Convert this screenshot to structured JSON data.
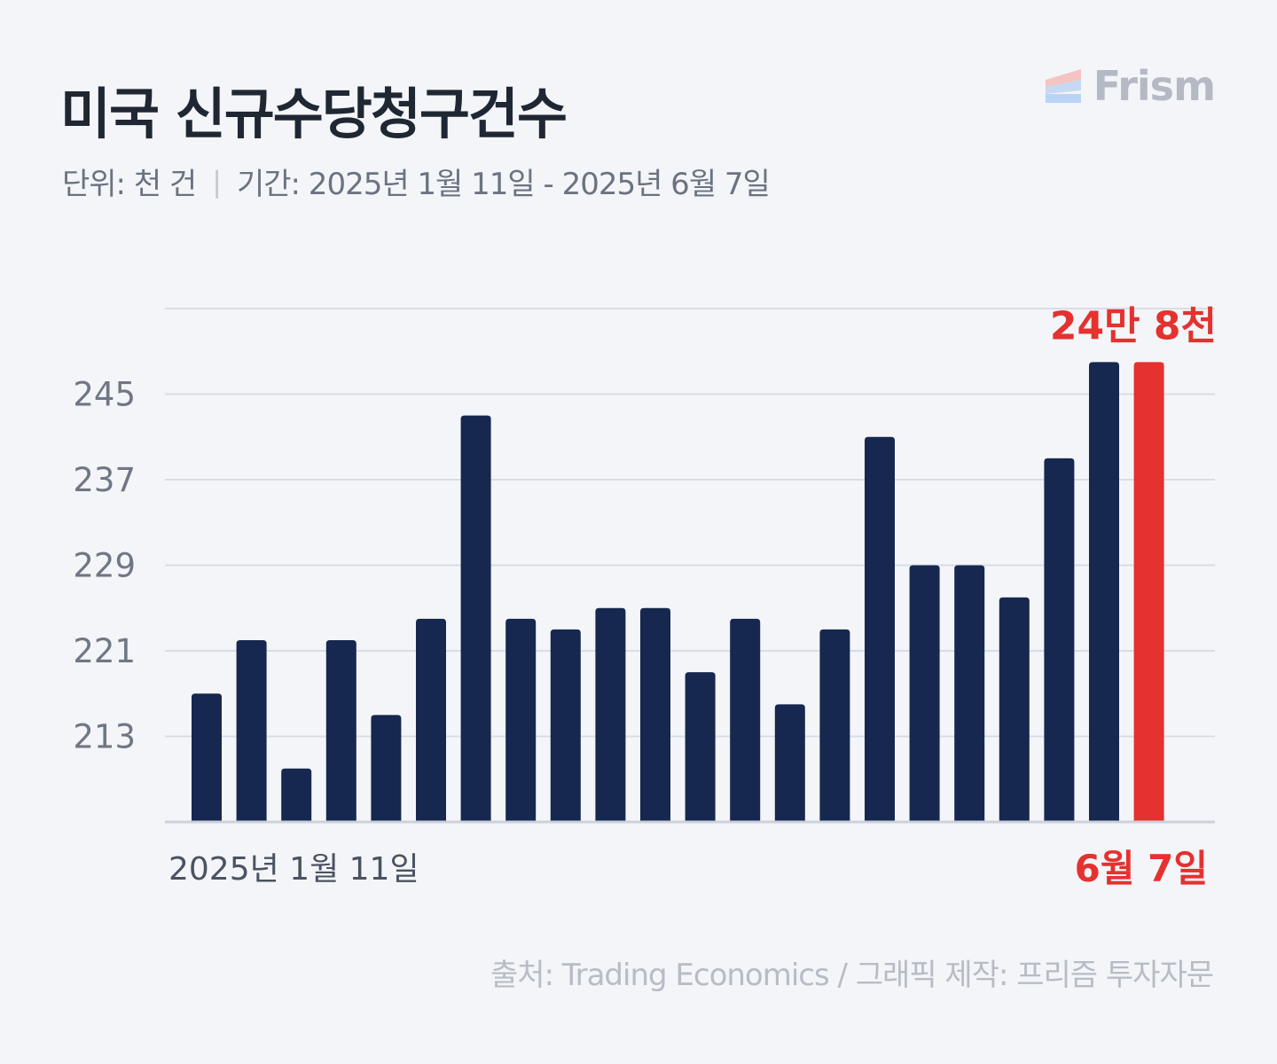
{
  "header": {
    "title": "미국 신규수당청구건수",
    "unit": "단위: 천 건",
    "separator": "|",
    "period": "기간: 2025년 1월 11일 - 2025년 6월 7일"
  },
  "logo": {
    "text": "Frism"
  },
  "footer": {
    "source": "출처: Trading Economics  / 그래픽 제작: 프리즘 투자자문"
  },
  "colors": {
    "bar": "#16284f",
    "highlight": "#e5312f",
    "grid": "#d9dde3",
    "background": "#f3f5f8"
  },
  "chart_data": {
    "type": "bar",
    "categories": [
      "2025년 1월 11일",
      "",
      "",
      "",
      "",
      "",
      "",
      "",
      "",
      "",
      "",
      "",
      "",
      "",
      "",
      "",
      "",
      "",
      "",
      "",
      "",
      "6월 7일"
    ],
    "values": [
      217,
      222,
      210,
      222,
      215,
      224,
      243,
      224,
      223,
      225,
      225,
      219,
      224,
      216,
      223,
      241,
      229,
      229,
      226,
      239,
      248,
      248
    ],
    "highlight_index": 21,
    "highlight_label": "24만 8천",
    "y_ticks": [
      213,
      221,
      229,
      237,
      245
    ],
    "ylim": [
      205,
      253
    ],
    "x_tick_labels": {
      "first": "2025년 1월 11일",
      "last": "6월 7일"
    },
    "grid": true
  }
}
